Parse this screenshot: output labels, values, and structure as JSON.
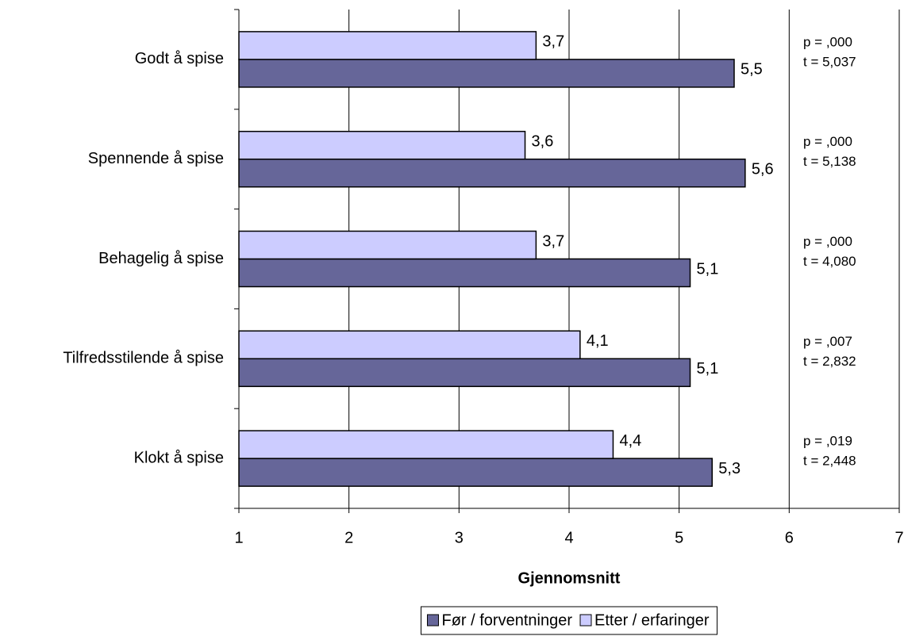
{
  "chart_data": {
    "type": "hbar",
    "categories": [
      "Godt å spise",
      "Spennende å spise",
      "Behagelig å spise",
      "Tilfredsstilende å spise",
      "Klokt å spise"
    ],
    "series": [
      {
        "name": "Før / forventninger",
        "color": "#666699",
        "values": [
          5.5,
          5.6,
          5.1,
          5.1,
          5.3
        ],
        "value_labels": [
          "5,5",
          "5,6",
          "5,1",
          "5,1",
          "5,3"
        ]
      },
      {
        "name": "Etter / erfaringer",
        "color": "#ccccff",
        "values": [
          3.7,
          3.6,
          3.7,
          4.1,
          4.4
        ],
        "value_labels": [
          "3,7",
          "3,6",
          "3,7",
          "4,1",
          "4,4"
        ]
      }
    ],
    "annotations": [
      {
        "p": "p = ,000",
        "t": "t = 5,037"
      },
      {
        "p": "p = ,000",
        "t": "t = 5,138"
      },
      {
        "p": "p = ,000",
        "t": "t = 4,080"
      },
      {
        "p": "p = ,007",
        "t": "t = 2,832"
      },
      {
        "p": "p = ,019",
        "t": "t = 2,448"
      }
    ],
    "x_label": "Gjennomsnitt",
    "xlim": [
      1,
      7
    ],
    "xticks": [
      1,
      2,
      3,
      4,
      5,
      6,
      7
    ],
    "grid": true,
    "legend": "bottom"
  }
}
